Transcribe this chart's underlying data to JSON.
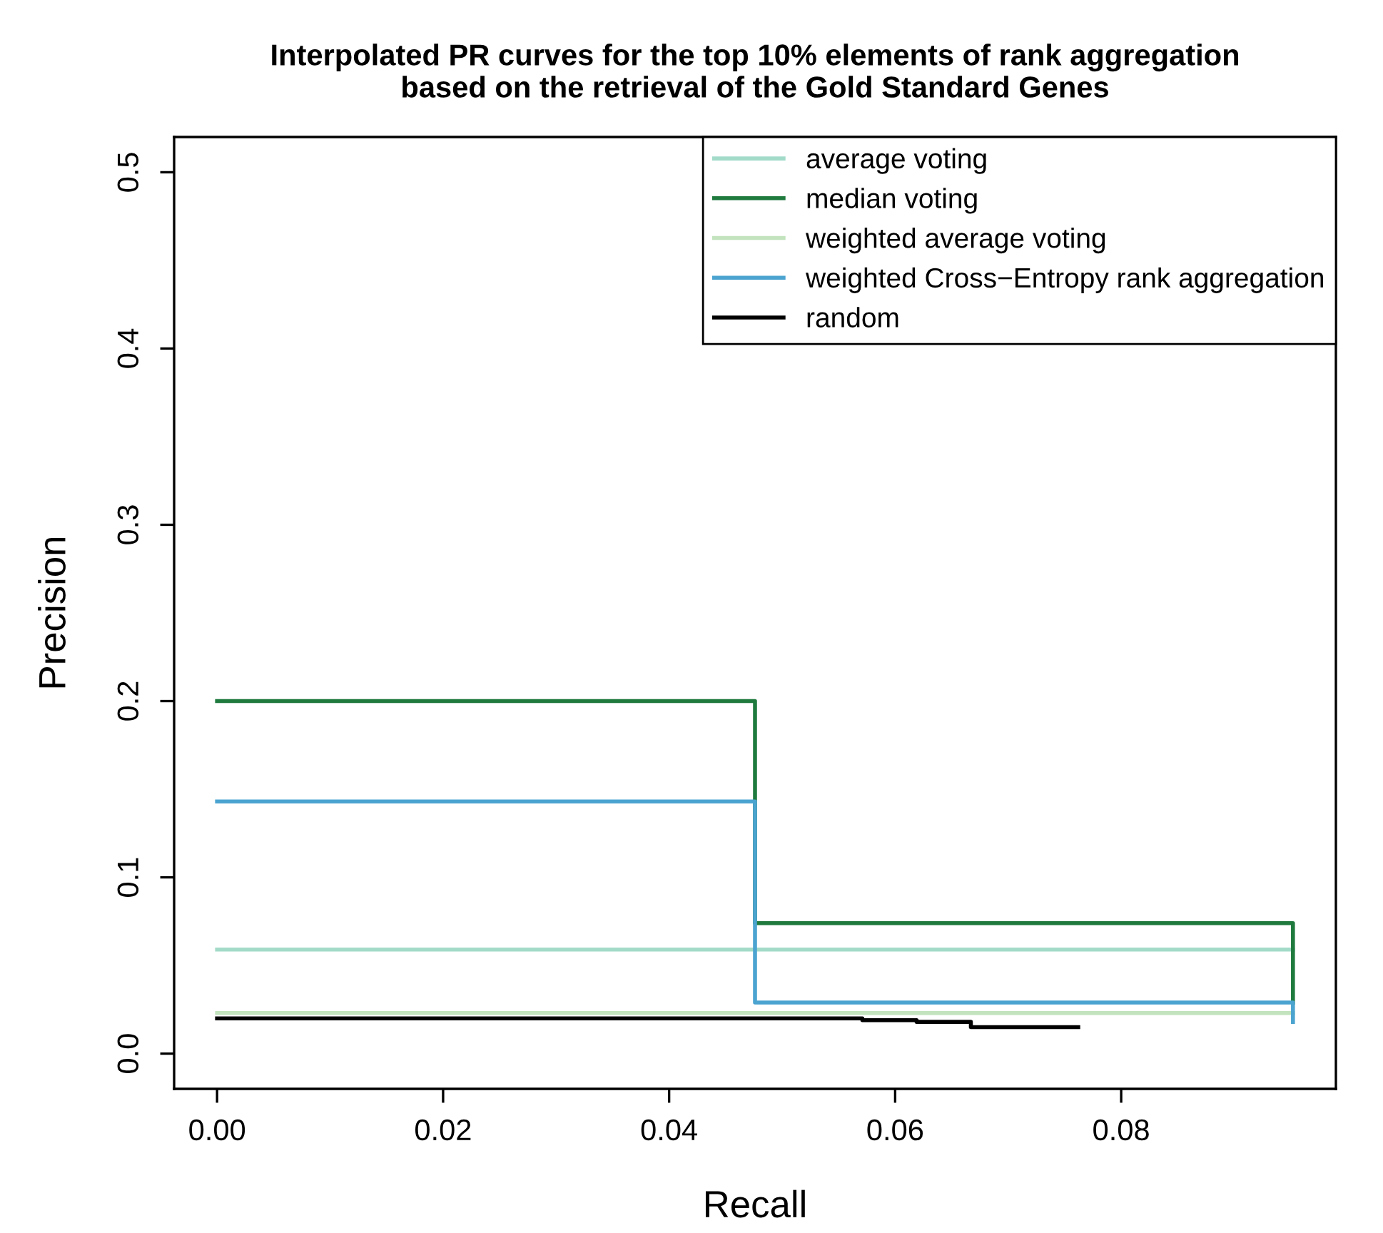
{
  "chart_data": {
    "type": "step",
    "title": "Interpolated PR curves for the top 10% elements of rank aggregation\nbased on the retrieval of the Gold Standard Genes",
    "xlabel": "Recall",
    "ylabel": "Precision",
    "xlim": [
      -0.0038,
      0.099
    ],
    "ylim": [
      -0.02,
      0.52
    ],
    "xticks": [
      {
        "value": 0,
        "label": "0.00"
      },
      {
        "value": 0.02,
        "label": "0.02"
      },
      {
        "value": 0.04,
        "label": "0.04"
      },
      {
        "value": 0.06,
        "label": "0.06"
      },
      {
        "value": 0.08,
        "label": "0.08"
      }
    ],
    "yticks": [
      {
        "value": 0,
        "label": "0.0"
      },
      {
        "value": 0.1,
        "label": "0.1"
      },
      {
        "value": 0.2,
        "label": "0.2"
      },
      {
        "value": 0.3,
        "label": "0.3"
      },
      {
        "value": 0.4,
        "label": "0.4"
      },
      {
        "value": 0.5,
        "label": "0.5"
      }
    ],
    "grid": false,
    "legend": "top right",
    "line_style": "solid",
    "marker": "none",
    "series": [
      {
        "name": "average voting",
        "color": "#a3dbc9",
        "x": [
          0,
          0.0952
        ],
        "values": [
          0.059,
          0.059
        ]
      },
      {
        "name": "median voting",
        "color": "#1f7a3e",
        "x": [
          0,
          0.0476,
          0.0952
        ],
        "values": [
          0.2,
          0.074,
          0.029
        ]
      },
      {
        "name": "weighted average voting",
        "color": "#c2e3bd",
        "x": [
          0,
          0.0952
        ],
        "values": [
          0.023,
          0.023
        ]
      },
      {
        "name": "weighted Cross−Entropy rank aggregation",
        "color": "#4ba3d0",
        "x": [
          0,
          0.0476,
          0.0952
        ],
        "values": [
          0.143,
          0.029,
          0.018
        ]
      },
      {
        "name": "random",
        "color": "#000000",
        "x": [
          0,
          0.0571,
          0.0619,
          0.0667,
          0.0762
        ],
        "values": [
          0.02,
          0.019,
          0.018,
          0.015,
          0.015
        ]
      }
    ]
  }
}
